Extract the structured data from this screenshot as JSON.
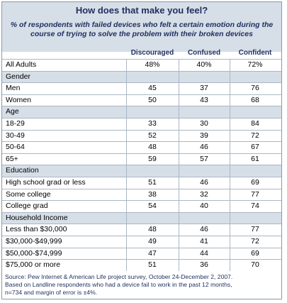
{
  "title": "How does that make you feel?",
  "subtitle": [
    "% of respondents with failed devices who felt a certain emotion during the",
    "course of trying to solve the problem with their broken devices"
  ],
  "columns": [
    "Discouraged",
    "Confused",
    "Confident"
  ],
  "rows": [
    {
      "type": "data",
      "label": "All Adults",
      "values": [
        "48%",
        "40%",
        "72%"
      ]
    },
    {
      "type": "section",
      "label": "Gender"
    },
    {
      "type": "data",
      "label": "Men",
      "values": [
        "45",
        "37",
        "76"
      ]
    },
    {
      "type": "data",
      "label": "Women",
      "values": [
        "50",
        "43",
        "68"
      ]
    },
    {
      "type": "section",
      "label": "Age"
    },
    {
      "type": "data",
      "label": "18-29",
      "values": [
        "33",
        "30",
        "84"
      ]
    },
    {
      "type": "data",
      "label": "30-49",
      "values": [
        "52",
        "39",
        "72"
      ]
    },
    {
      "type": "data",
      "label": "50-64",
      "values": [
        "48",
        "46",
        "67"
      ]
    },
    {
      "type": "data",
      "label": "65+",
      "values": [
        "59",
        "57",
        "61"
      ]
    },
    {
      "type": "section",
      "label": "Education"
    },
    {
      "type": "data",
      "label": "High school grad or less",
      "values": [
        "51",
        "46",
        "69"
      ]
    },
    {
      "type": "data",
      "label": "Some college",
      "values": [
        "38",
        "32",
        "77"
      ]
    },
    {
      "type": "data",
      "label": "College grad",
      "values": [
        "54",
        "40",
        "74"
      ]
    },
    {
      "type": "section",
      "label": "Household Income"
    },
    {
      "type": "data",
      "label": "Less than $30,000",
      "values": [
        "48",
        "46",
        "77"
      ]
    },
    {
      "type": "data",
      "label": "$30,000-$49,999",
      "values": [
        "49",
        "41",
        "72"
      ]
    },
    {
      "type": "data",
      "label": "$50,000-$74,999",
      "values": [
        "47",
        "44",
        "69"
      ]
    },
    {
      "type": "data",
      "label": "$75,000 or more",
      "values": [
        "51",
        "36",
        "70"
      ]
    }
  ],
  "source": [
    "Source: Pew Internet & American Life project survey, October 24-December 2, 2007.",
    "Based on Landline respondents who had a device fail to work in the past 12 months,",
    "n=734 and margin of error is ±4%."
  ],
  "colors": {
    "header_bg": "#d6dee7",
    "header_text": "#1f2f5f",
    "rule": "#aab7c4"
  }
}
